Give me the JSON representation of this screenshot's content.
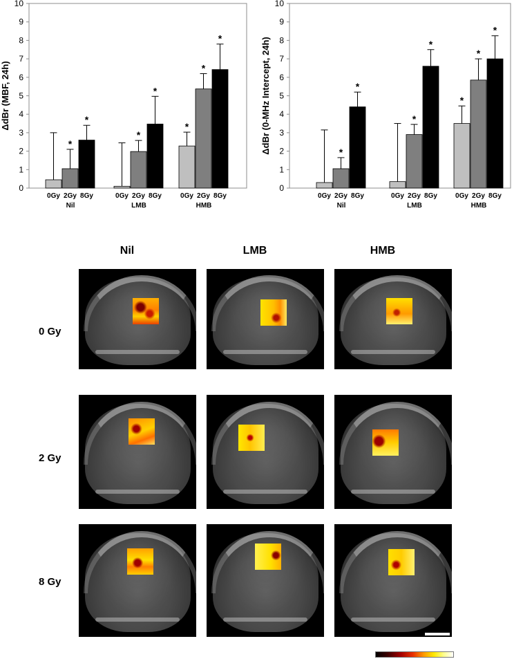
{
  "chart_data": [
    {
      "type": "bar",
      "ylabel": "ΔdBr (MBF, 24h)",
      "ylim": [
        0,
        10
      ],
      "yticks": [
        0,
        1,
        2,
        3,
        4,
        5,
        6,
        7,
        8,
        9,
        10
      ],
      "groups": [
        {
          "label": "Nil",
          "bars": [
            {
              "label": "0Gy",
              "value": 0.45,
              "err": 2.55,
              "star": false
            },
            {
              "label": "2Gy",
              "value": 1.05,
              "err": 1.05,
              "star": true
            },
            {
              "label": "8Gy",
              "value": 2.6,
              "err": 0.8,
              "star": true
            }
          ]
        },
        {
          "label": "LMB",
          "bars": [
            {
              "label": "0Gy",
              "value": 0.1,
              "err": 2.35,
              "star": false
            },
            {
              "label": "2Gy",
              "value": 1.98,
              "err": 0.6,
              "star": true
            },
            {
              "label": "8Gy",
              "value": 3.47,
              "err": 1.5,
              "star": true
            }
          ]
        },
        {
          "label": "HMB",
          "bars": [
            {
              "label": "0Gy",
              "value": 2.28,
              "err": 0.75,
              "star": true
            },
            {
              "label": "2Gy",
              "value": 5.37,
              "err": 0.83,
              "star": true
            },
            {
              "label": "8Gy",
              "value": 6.42,
              "err": 1.38,
              "star": true
            }
          ]
        }
      ],
      "bar_colors": [
        "#bfbfbf",
        "#7f7f7f",
        "#000000"
      ],
      "star_symbol": "*"
    },
    {
      "type": "bar",
      "ylabel": "ΔdBr (0-MHz Intercept, 24h)",
      "ylim": [
        0,
        10
      ],
      "yticks": [
        0,
        1,
        2,
        3,
        4,
        5,
        6,
        7,
        8,
        9,
        10
      ],
      "groups": [
        {
          "label": "Nil",
          "bars": [
            {
              "label": "0Gy",
              "value": 0.3,
              "err": 2.85,
              "star": false
            },
            {
              "label": "2Gy",
              "value": 1.05,
              "err": 0.6,
              "star": true
            },
            {
              "label": "8Gy",
              "value": 4.4,
              "err": 0.8,
              "star": true
            }
          ]
        },
        {
          "label": "LMB",
          "bars": [
            {
              "label": "0Gy",
              "value": 0.35,
              "err": 3.15,
              "star": false
            },
            {
              "label": "2Gy",
              "value": 2.9,
              "err": 0.55,
              "star": true
            },
            {
              "label": "8Gy",
              "value": 6.6,
              "err": 0.9,
              "star": true
            }
          ]
        },
        {
          "label": "HMB",
          "bars": [
            {
              "label": "0Gy",
              "value": 3.5,
              "err": 0.95,
              "star": true
            },
            {
              "label": "2Gy",
              "value": 5.85,
              "err": 1.15,
              "star": true
            },
            {
              "label": "8Gy",
              "value": 7.0,
              "err": 1.25,
              "star": true
            }
          ]
        }
      ],
      "bar_colors": [
        "#bfbfbf",
        "#7f7f7f",
        "#000000"
      ],
      "star_symbol": "*"
    }
  ],
  "image_grid": {
    "columns": [
      "Nil",
      "LMB",
      "HMB"
    ],
    "rows": [
      "0 Gy",
      "2 Gy",
      "8 Gy"
    ],
    "colors": {
      "panel_bg": "#000000",
      "tissue": "#4a4a4a",
      "scale_bar": "#ffffff"
    }
  }
}
